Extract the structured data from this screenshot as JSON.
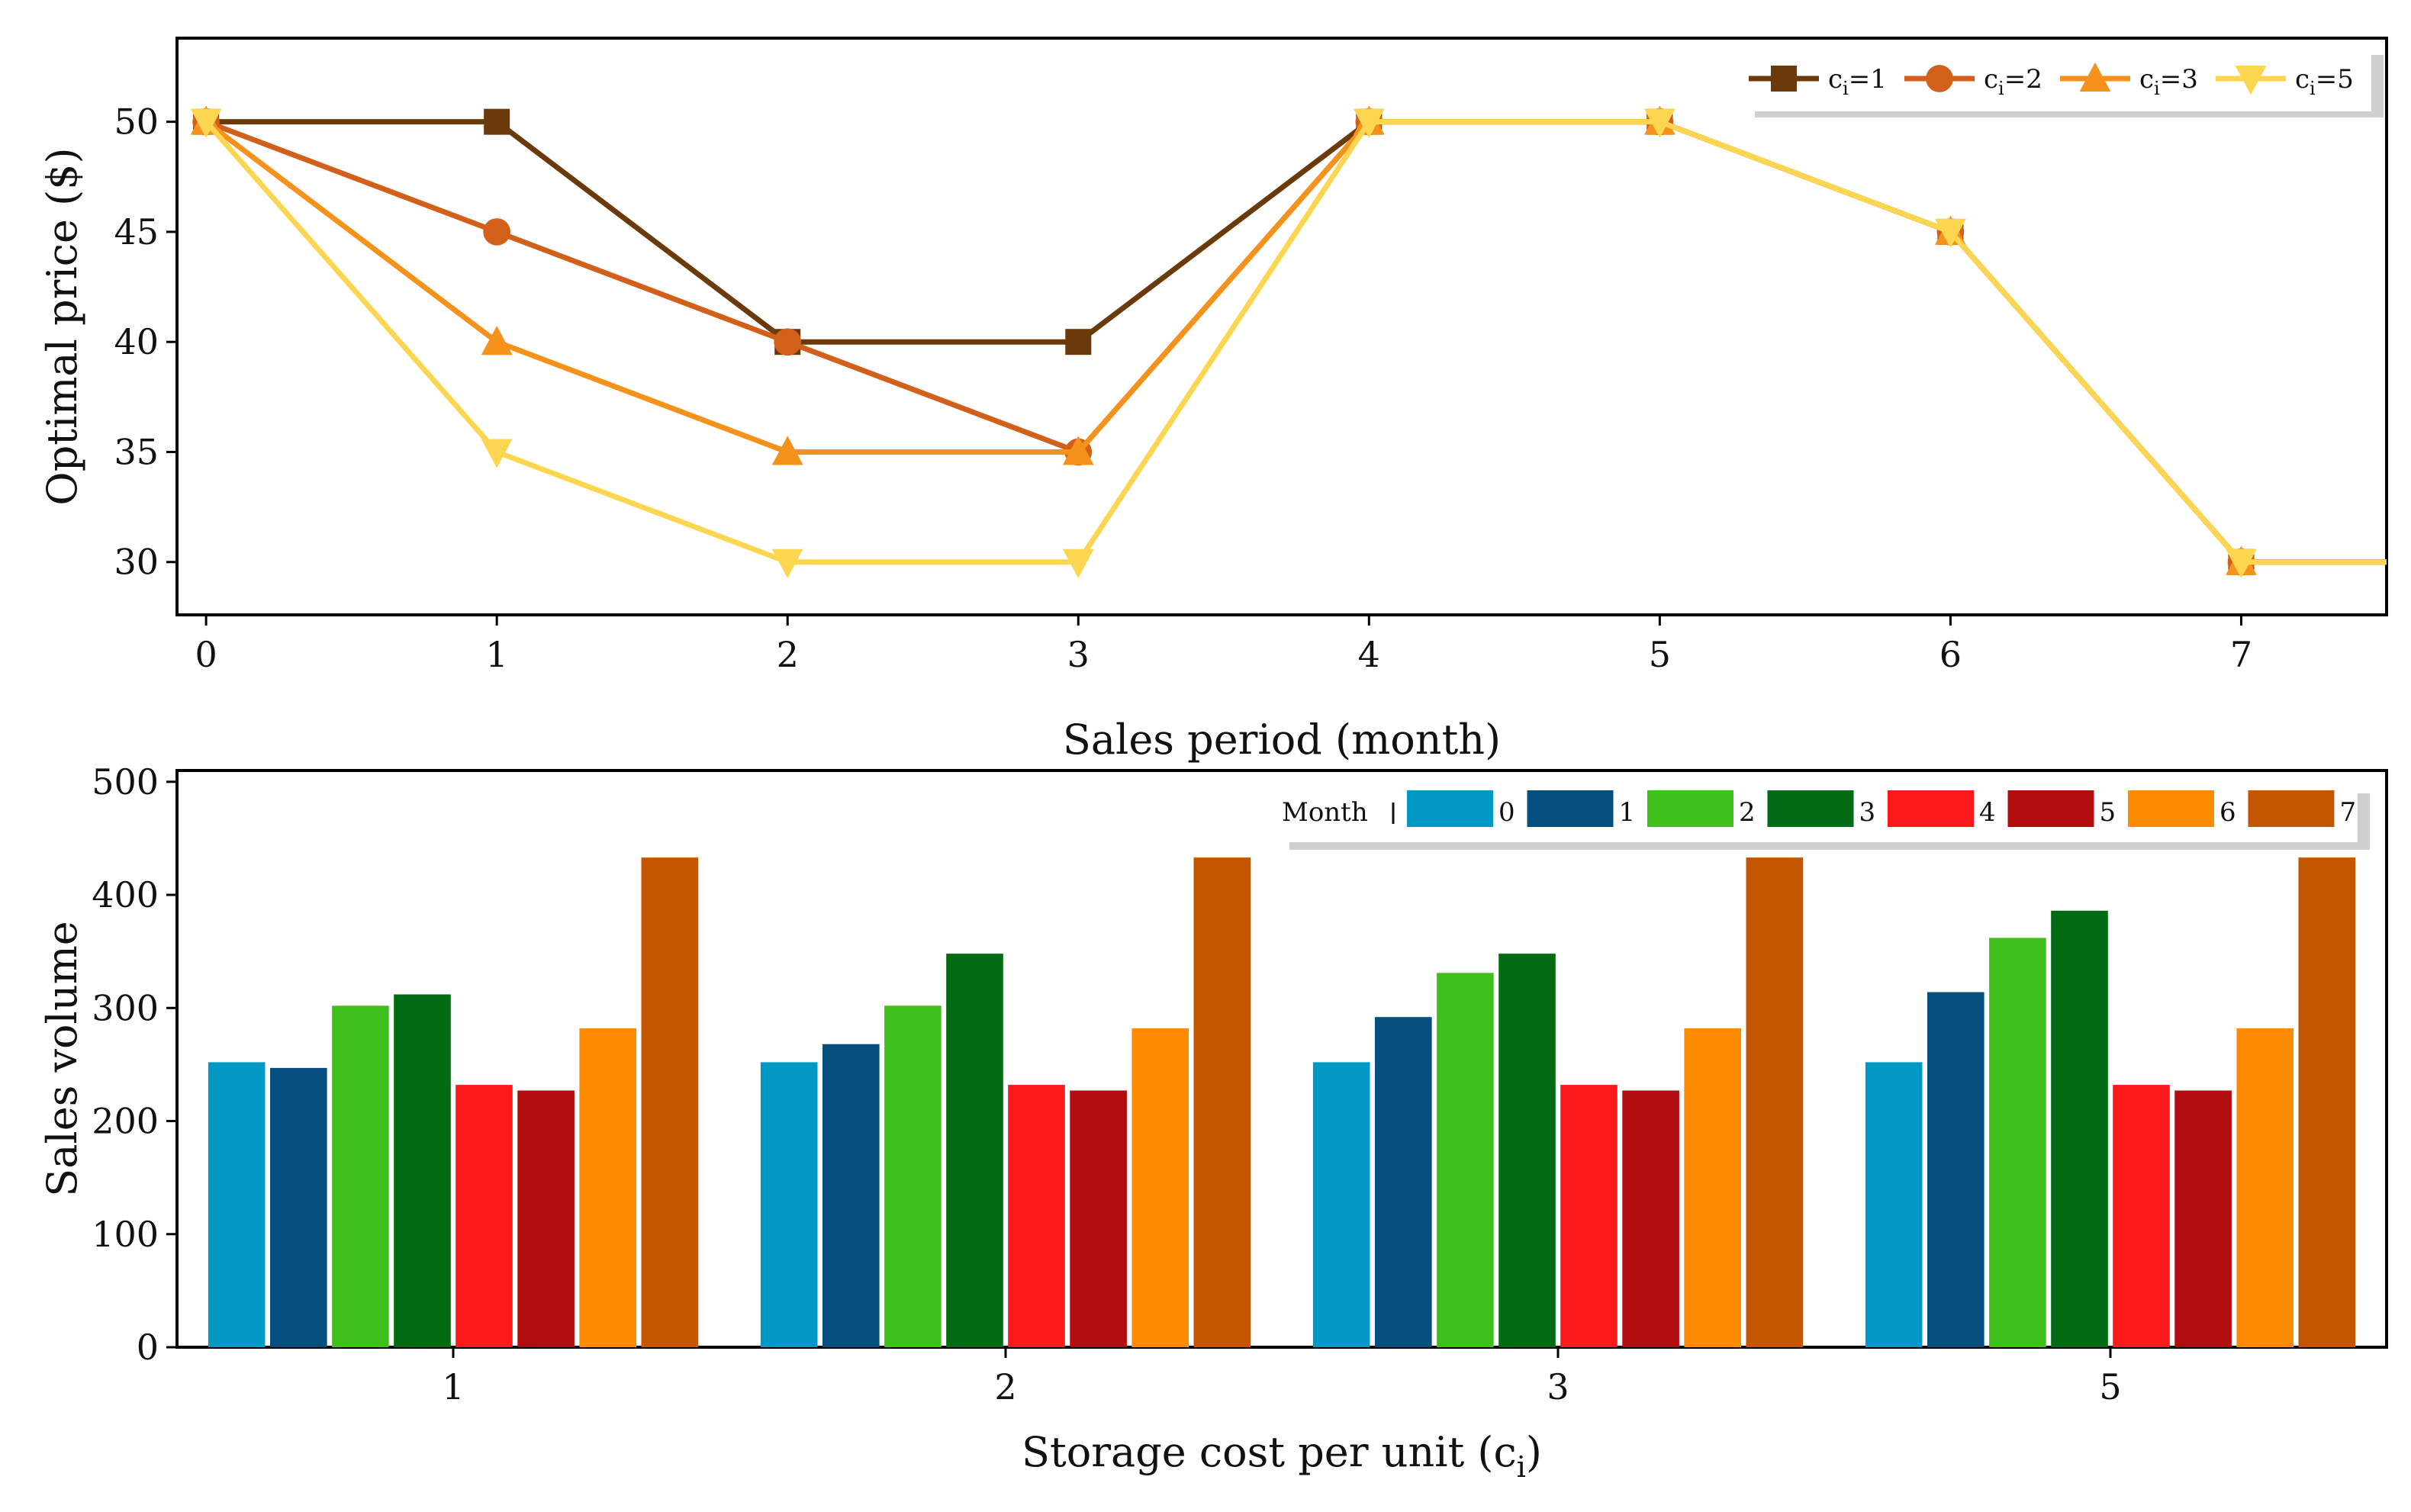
{
  "chart_data": [
    {
      "type": "line",
      "title": "",
      "xlabel": "Sales period (month)",
      "ylabel": "Optimal price ($)",
      "x": [
        0,
        1,
        2,
        3,
        4,
        5,
        6,
        7,
        7.5
      ],
      "xticks": [
        "0",
        "1",
        "2",
        "3",
        "4",
        "5",
        "6",
        "7"
      ],
      "yticks": [
        "30",
        "35",
        "40",
        "45",
        "50"
      ],
      "xlim": [
        -0.1,
        7.5
      ],
      "ylim": [
        27.6,
        53.8
      ],
      "grid": false,
      "legend_position": "top-right",
      "series": [
        {
          "name": "ci=1",
          "legend_prefix": "c",
          "legend_sub": "i",
          "legend_suffix": "=1",
          "marker": "square",
          "color": "#6b3a0b",
          "values": [
            50,
            50,
            40,
            40,
            50,
            50,
            45,
            30,
            30
          ]
        },
        {
          "name": "ci=2",
          "legend_prefix": "c",
          "legend_sub": "i",
          "legend_suffix": "=2",
          "marker": "circle",
          "color": "#d2601a",
          "values": [
            50,
            45,
            40,
            35,
            50,
            50,
            45,
            30,
            30
          ]
        },
        {
          "name": "ci=3",
          "legend_prefix": "c",
          "legend_sub": "i",
          "legend_suffix": "=3",
          "marker": "triangle-up",
          "color": "#f5921b",
          "values": [
            50,
            40,
            35,
            35,
            50,
            50,
            45,
            30,
            30
          ]
        },
        {
          "name": "ci=5",
          "legend_prefix": "c",
          "legend_sub": "i",
          "legend_suffix": "=5",
          "marker": "triangle-down",
          "color": "#fcd650",
          "values": [
            50,
            35,
            30,
            30,
            50,
            50,
            45,
            30,
            30
          ]
        }
      ]
    },
    {
      "type": "bar",
      "title": "",
      "xlabel_prefix": "Storage cost per unit (c",
      "xlabel_sub": "i",
      "xlabel_suffix": ")",
      "ylabel": "Sales volume",
      "categories": [
        "1",
        "2",
        "3",
        "5"
      ],
      "yticks": [
        "0",
        "100",
        "200",
        "300",
        "400",
        "500"
      ],
      "ylim": [
        0,
        510
      ],
      "grid": false,
      "legend_title": "Month",
      "legend_position": "top-right",
      "series": [
        {
          "name": "0",
          "color": "#0099c6",
          "values": [
            252,
            252,
            252,
            252
          ]
        },
        {
          "name": "1",
          "color": "#054e7d",
          "values": [
            247,
            268,
            292,
            314
          ]
        },
        {
          "name": "2",
          "color": "#40c01c",
          "values": [
            302,
            302,
            331,
            362
          ]
        },
        {
          "name": "3",
          "color": "#036b13",
          "values": [
            312,
            348,
            348,
            386
          ]
        },
        {
          "name": "4",
          "color": "#fb1a1b",
          "values": [
            232,
            232,
            232,
            232
          ]
        },
        {
          "name": "5",
          "color": "#b10c0e",
          "values": [
            227,
            227,
            227,
            227
          ]
        },
        {
          "name": "6",
          "color": "#fd8c02",
          "values": [
            282,
            282,
            282,
            282
          ]
        },
        {
          "name": "7",
          "color": "#c45602",
          "values": [
            433,
            433,
            433,
            433
          ]
        }
      ]
    }
  ]
}
